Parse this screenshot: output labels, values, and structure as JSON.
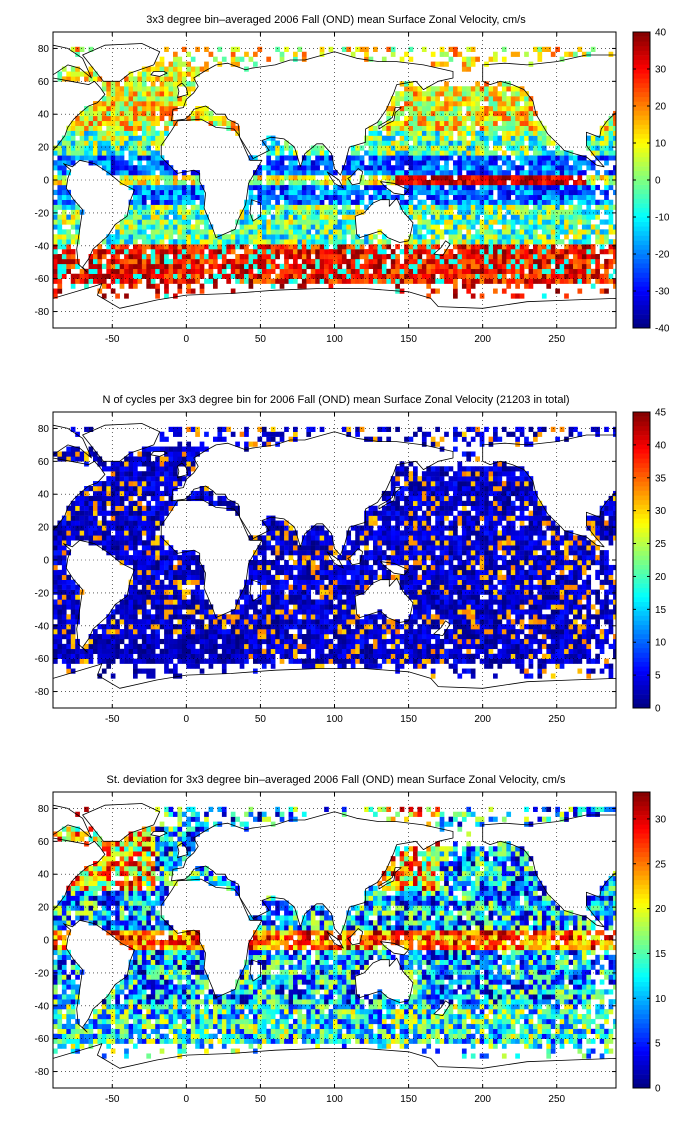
{
  "chart_data": [
    {
      "type": "heatmap",
      "title": "3x3 degree bin–averaged 2006 Fall (OND) mean Surface Zonal Velocity, cm/s",
      "xlabel": "",
      "ylabel": "",
      "xlim": [
        -90,
        290
      ],
      "ylim": [
        -90,
        90
      ],
      "x_ticks": [
        -50,
        0,
        50,
        100,
        150,
        200,
        250
      ],
      "y_ticks": [
        80,
        60,
        40,
        20,
        0,
        -20,
        -40,
        -60,
        -80
      ],
      "colorbar": {
        "min": -40,
        "max": 40,
        "ticks": [
          40,
          30,
          20,
          10,
          0,
          -10,
          -20,
          -30,
          -40
        ]
      },
      "colormap": "jet",
      "grid": true,
      "bin_size_deg": 3
    },
    {
      "type": "heatmap",
      "title": "N of cycles per 3x3 degree bin for 2006 Fall (OND) mean Surface Zonal Velocity (21203 in total)",
      "xlabel": "",
      "ylabel": "",
      "xlim": [
        -90,
        290
      ],
      "ylim": [
        -90,
        90
      ],
      "x_ticks": [
        -50,
        0,
        50,
        100,
        150,
        200,
        250
      ],
      "y_ticks": [
        80,
        60,
        40,
        20,
        0,
        -20,
        -40,
        -60,
        -80
      ],
      "colorbar": {
        "min": 0,
        "max": 45,
        "ticks": [
          45,
          40,
          35,
          30,
          25,
          20,
          15,
          10,
          5,
          0
        ]
      },
      "colormap": "jet",
      "grid": true,
      "bin_size_deg": 3
    },
    {
      "type": "heatmap",
      "title": "St. deviation for 3x3 degree bin–averaged 2006 Fall (OND) mean Surface Zonal Velocity, cm/s",
      "xlabel": "",
      "ylabel": "",
      "xlim": [
        -90,
        290
      ],
      "ylim": [
        -90,
        90
      ],
      "x_ticks": [
        -50,
        0,
        50,
        100,
        150,
        200,
        250
      ],
      "y_ticks": [
        80,
        60,
        40,
        20,
        0,
        -20,
        -40,
        -60,
        -80
      ],
      "colorbar": {
        "min": 0,
        "max": 33,
        "ticks": [
          30,
          25,
          20,
          15,
          10,
          5,
          0
        ]
      },
      "colormap": "jet",
      "grid": true,
      "bin_size_deg": 3
    }
  ]
}
